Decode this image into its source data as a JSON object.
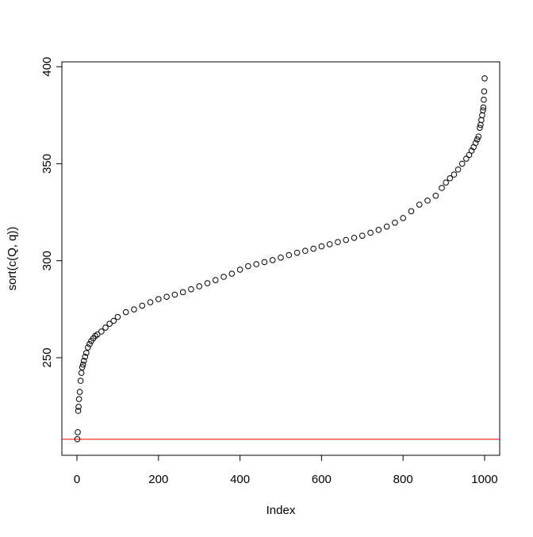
{
  "chart_data": {
    "type": "scatter",
    "x_label": "Index",
    "y_label": "sort(c(Q, q))",
    "xlim": [
      -37,
      1037
    ],
    "ylim": [
      199.7,
      402.5
    ],
    "xticks": [
      0,
      200,
      400,
      600,
      800,
      1000
    ],
    "yticks": [
      250,
      300,
      350,
      400
    ],
    "color": "#000000",
    "hline": 208,
    "hline_color": "#ff0000",
    "x": [
      1,
      2,
      3,
      4,
      5,
      7,
      9,
      11,
      13,
      15,
      17,
      20,
      23,
      27,
      31,
      35,
      40,
      45,
      50,
      60,
      70,
      80,
      90,
      100,
      120,
      140,
      160,
      180,
      200,
      220,
      240,
      260,
      280,
      300,
      320,
      340,
      360,
      380,
      400,
      420,
      440,
      460,
      480,
      500,
      520,
      540,
      560,
      580,
      600,
      620,
      640,
      660,
      680,
      700,
      720,
      740,
      760,
      780,
      800,
      820,
      840,
      860,
      880,
      895,
      905,
      915,
      925,
      935,
      945,
      955,
      962,
      968,
      973,
      978,
      982,
      985,
      988,
      990,
      992,
      994,
      996,
      997,
      998,
      999,
      1000
    ],
    "y": [
      208,
      211.6,
      222.6,
      224.7,
      228.7,
      232.4,
      238.1,
      242.2,
      245.1,
      246.5,
      248.4,
      250.5,
      252.5,
      255.3,
      257,
      258.6,
      260,
      261.2,
      262,
      263.5,
      265.5,
      267.5,
      269,
      271,
      273.5,
      274.9,
      276.8,
      278.6,
      280.2,
      281.4,
      282.5,
      283.8,
      285.3,
      286.8,
      288.4,
      290,
      291.7,
      293.3,
      295.4,
      297.2,
      298.2,
      299.3,
      300.3,
      301.6,
      302.9,
      304.1,
      305.1,
      306.2,
      307.4,
      308.5,
      309.6,
      310.7,
      311.8,
      312.9,
      314.4,
      315.9,
      317.6,
      319.6,
      322,
      325.5,
      328.9,
      331,
      333.5,
      337.5,
      340.3,
      342.5,
      344.4,
      347,
      350,
      352.6,
      354.5,
      356.7,
      358.5,
      360.7,
      362.5,
      364,
      368.5,
      370,
      372.5,
      375,
      377.5,
      379,
      383,
      387.3,
      394
    ]
  }
}
